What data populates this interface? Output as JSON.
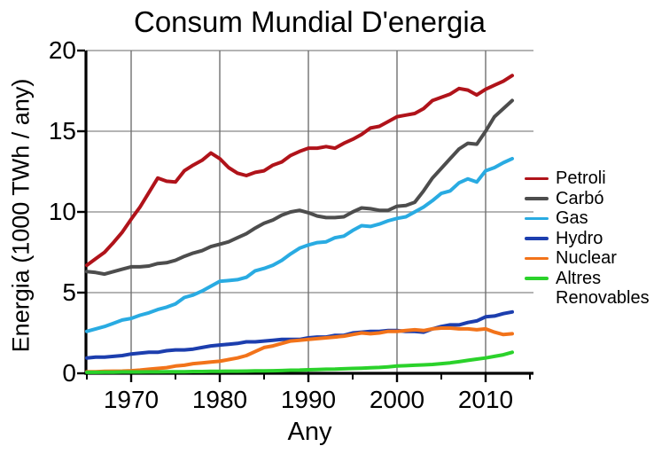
{
  "chart_data": {
    "type": "line",
    "title": "Consum Mundial D'energia",
    "xlabel": "Any",
    "ylabel": "Energia (1000 TWh / any)",
    "xlim": [
      1965,
      2015
    ],
    "ylim": [
      0,
      20
    ],
    "grid": true,
    "legend_position": "right",
    "x_ticks_labeled": [
      1970,
      1980,
      1990,
      2000,
      2010
    ],
    "x_ticks_minor": [
      1965,
      1975,
      1985,
      1995,
      2005,
      2015
    ],
    "y_ticks": [
      0,
      5,
      10,
      15,
      20
    ],
    "x": [
      1965,
      1966,
      1967,
      1968,
      1969,
      1970,
      1971,
      1972,
      1973,
      1974,
      1975,
      1976,
      1977,
      1978,
      1979,
      1980,
      1981,
      1982,
      1983,
      1984,
      1985,
      1986,
      1987,
      1988,
      1989,
      1990,
      1991,
      1992,
      1993,
      1994,
      1995,
      1996,
      1997,
      1998,
      1999,
      2000,
      2001,
      2002,
      2003,
      2004,
      2005,
      2006,
      2007,
      2008,
      2009,
      2010,
      2011,
      2012,
      2013
    ],
    "series": [
      {
        "name": "Petroli",
        "color": "#b0131a",
        "values": [
          6.7,
          7.1,
          7.5,
          8.1,
          8.75,
          9.55,
          10.3,
          11.2,
          12.1,
          11.9,
          11.85,
          12.55,
          12.9,
          13.2,
          13.65,
          13.3,
          12.75,
          12.4,
          12.25,
          12.45,
          12.55,
          12.9,
          13.1,
          13.5,
          13.75,
          13.95,
          13.95,
          14.05,
          13.95,
          14.25,
          14.5,
          14.8,
          15.2,
          15.3,
          15.6,
          15.9,
          16.0,
          16.1,
          16.4,
          16.9,
          17.1,
          17.3,
          17.65,
          17.55,
          17.25,
          17.6,
          17.85,
          18.1,
          18.45
        ]
      },
      {
        "name": "Carbó",
        "color": "#4d4d4d",
        "values": [
          6.3,
          6.25,
          6.15,
          6.3,
          6.45,
          6.6,
          6.6,
          6.65,
          6.8,
          6.85,
          7.0,
          7.25,
          7.45,
          7.6,
          7.85,
          8.0,
          8.15,
          8.4,
          8.65,
          9.0,
          9.3,
          9.5,
          9.8,
          10.0,
          10.1,
          9.95,
          9.75,
          9.65,
          9.65,
          9.7,
          10.0,
          10.25,
          10.2,
          10.1,
          10.1,
          10.35,
          10.4,
          10.6,
          11.3,
          12.1,
          12.7,
          13.3,
          13.9,
          14.25,
          14.2,
          15.0,
          15.9,
          16.4,
          16.9
        ]
      },
      {
        "name": "Gas",
        "color": "#29abe2",
        "values": [
          2.6,
          2.75,
          2.9,
          3.1,
          3.3,
          3.4,
          3.6,
          3.75,
          3.95,
          4.1,
          4.3,
          4.7,
          4.85,
          5.1,
          5.4,
          5.7,
          5.75,
          5.8,
          5.95,
          6.35,
          6.5,
          6.7,
          7.0,
          7.4,
          7.75,
          7.95,
          8.1,
          8.15,
          8.4,
          8.5,
          8.85,
          9.15,
          9.1,
          9.25,
          9.45,
          9.6,
          9.7,
          10.0,
          10.3,
          10.7,
          11.15,
          11.3,
          11.8,
          12.05,
          11.85,
          12.55,
          12.75,
          13.05,
          13.3
        ]
      },
      {
        "name": "Hydro",
        "color": "#1c3eae",
        "values": [
          0.95,
          1.0,
          1.0,
          1.05,
          1.1,
          1.2,
          1.25,
          1.3,
          1.3,
          1.4,
          1.45,
          1.45,
          1.5,
          1.6,
          1.7,
          1.75,
          1.8,
          1.85,
          1.95,
          1.95,
          2.0,
          2.05,
          2.1,
          2.1,
          2.1,
          2.2,
          2.25,
          2.25,
          2.35,
          2.35,
          2.5,
          2.55,
          2.6,
          2.6,
          2.65,
          2.65,
          2.6,
          2.6,
          2.55,
          2.75,
          2.9,
          3.0,
          3.0,
          3.15,
          3.25,
          3.5,
          3.55,
          3.7,
          3.8
        ]
      },
      {
        "name": "Nuclear",
        "color": "#f2731a",
        "values": [
          0.1,
          0.1,
          0.12,
          0.13,
          0.14,
          0.16,
          0.2,
          0.25,
          0.3,
          0.35,
          0.45,
          0.5,
          0.6,
          0.65,
          0.7,
          0.75,
          0.85,
          0.95,
          1.1,
          1.35,
          1.6,
          1.7,
          1.85,
          2.0,
          2.05,
          2.1,
          2.15,
          2.2,
          2.25,
          2.3,
          2.4,
          2.5,
          2.45,
          2.5,
          2.6,
          2.6,
          2.65,
          2.7,
          2.65,
          2.75,
          2.8,
          2.8,
          2.75,
          2.75,
          2.7,
          2.75,
          2.55,
          2.4,
          2.45
        ]
      },
      {
        "name": "Altres Renovables",
        "color": "#2bd22b",
        "values": [
          0.06,
          0.06,
          0.07,
          0.07,
          0.08,
          0.08,
          0.08,
          0.09,
          0.09,
          0.1,
          0.1,
          0.1,
          0.11,
          0.11,
          0.12,
          0.12,
          0.13,
          0.13,
          0.14,
          0.15,
          0.15,
          0.16,
          0.17,
          0.19,
          0.2,
          0.22,
          0.23,
          0.25,
          0.26,
          0.28,
          0.3,
          0.32,
          0.34,
          0.36,
          0.4,
          0.45,
          0.47,
          0.5,
          0.52,
          0.55,
          0.6,
          0.65,
          0.72,
          0.8,
          0.88,
          0.95,
          1.05,
          1.15,
          1.3
        ]
      }
    ],
    "colors": {
      "axis": "#000000",
      "grid_vertical": "#707070",
      "grid_horizontal": "#9b9b9b",
      "background": "#ffffff"
    }
  }
}
